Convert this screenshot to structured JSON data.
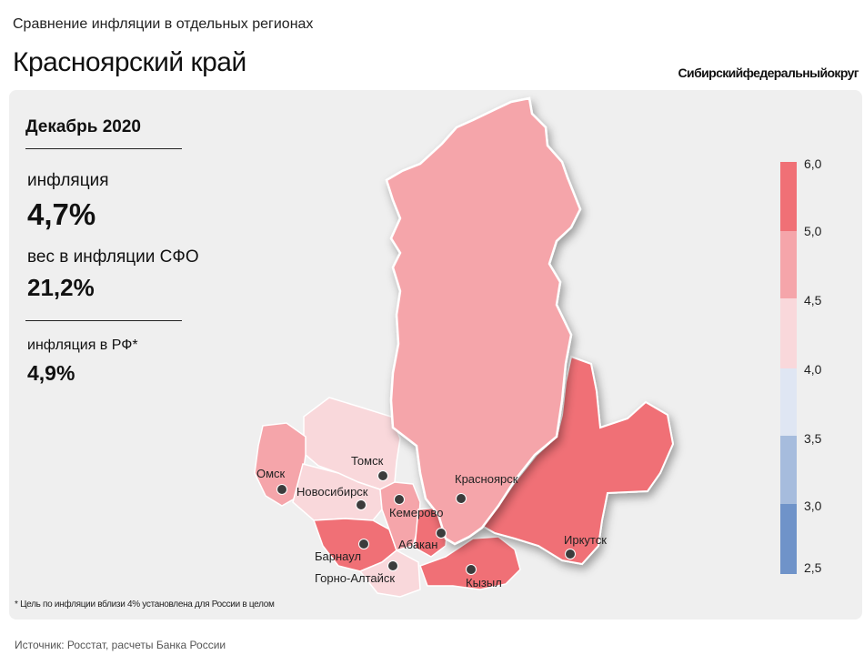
{
  "header": {
    "subtitle": "Сравнение инфляции в отдельных регионах",
    "title": "Красноярский край",
    "district": "Сибирскийфедеральныйокруг"
  },
  "stats": {
    "period": "Декабрь 2020",
    "inflation_label": "инфляция",
    "inflation_value": "4,7%",
    "weight_label": "вес в инфляции СФО",
    "weight_value": "21,2%",
    "rf_label": "инфляция в РФ*",
    "rf_value": "4,9%"
  },
  "legend": {
    "ticks": [
      "6,0",
      "5,0",
      "4,5",
      "4,0",
      "3,5",
      "3,0",
      "2,5"
    ],
    "colors": [
      "#f07076",
      "#f5a5aa",
      "#f9d8db",
      "#dfe6f3",
      "#a6bcdd",
      "#6f93c9"
    ]
  },
  "regions": [
    {
      "name": "Красноярский край",
      "color": "#f5a5aa"
    },
    {
      "name": "Иркутская область",
      "color": "#f07076"
    },
    {
      "name": "Тыва",
      "color": "#f07076"
    },
    {
      "name": "Хакасия",
      "color": "#f07076"
    },
    {
      "name": "Кемеровская область",
      "color": "#f5a5aa"
    },
    {
      "name": "Томская область",
      "color": "#f9d8db"
    },
    {
      "name": "Новосибирская область",
      "color": "#f9d8db"
    },
    {
      "name": "Омская область",
      "color": "#f5a5aa"
    },
    {
      "name": "Алтайский край",
      "color": "#f07076"
    },
    {
      "name": "Республика Алтай",
      "color": "#f9d8db"
    }
  ],
  "cities": {
    "tomsk": "Томск",
    "omsk": "Омск",
    "novosibirsk": "Новосибирск",
    "krasnoyarsk": "Красноярск",
    "kemerovo": "Кемерово",
    "barnaul": "Барнаул",
    "abakan": "Абакан",
    "gorno": "Горно-Алтайск",
    "irkutsk": "Иркутск",
    "kyzyl": "Кызыл"
  },
  "footnote": "* Цель по инфляции вблизи 4% установлена для России в целом",
  "source": "Источник: Росстат, расчеты Банка России"
}
